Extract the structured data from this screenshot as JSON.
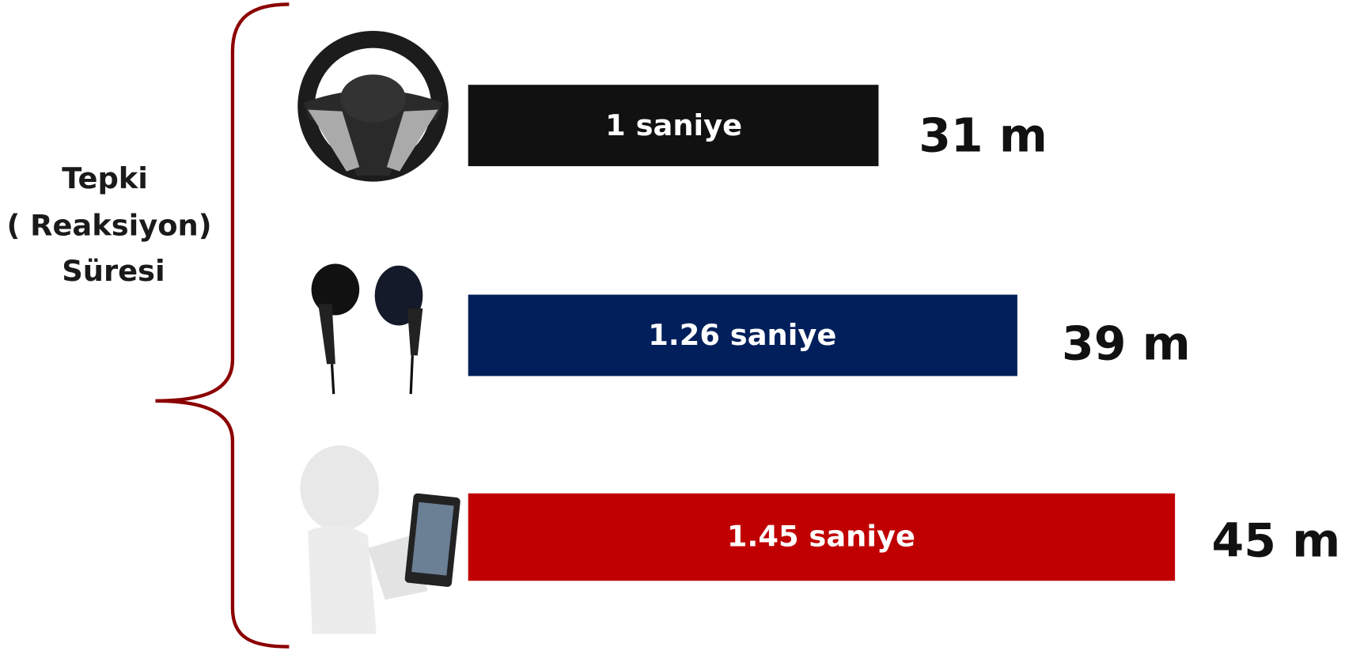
{
  "label": {
    "lines": [
      "Tepki",
      "( Reaksiyon)",
      "Süresi"
    ]
  },
  "rows": [
    {
      "time": "1 saniye",
      "distance": "31 m"
    },
    {
      "time": "1.26 saniye",
      "distance": "39 m"
    },
    {
      "time": "1.45 saniye",
      "distance": "45 m"
    }
  ]
}
